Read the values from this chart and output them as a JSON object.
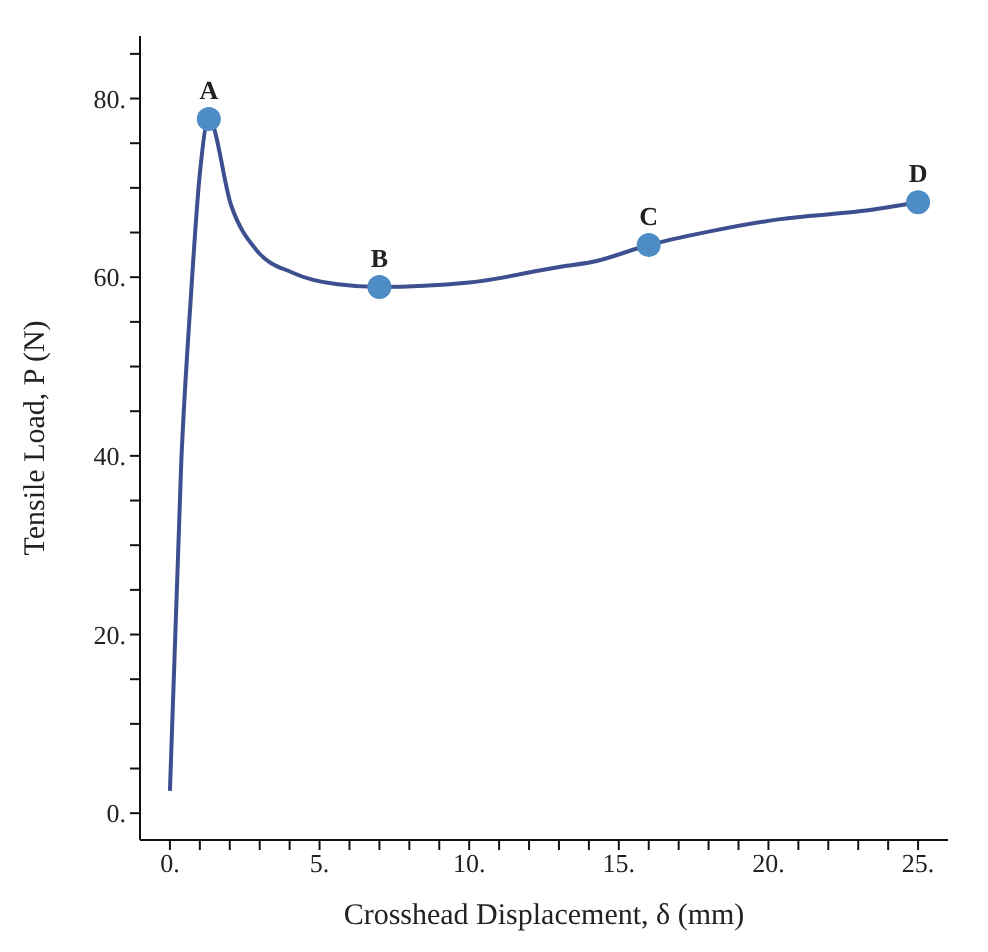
{
  "chart_data": {
    "type": "line",
    "xlabel": "Crosshead Displacement, δ (mm)",
    "ylabel": "Tensile Load, P (N)",
    "xlim": [
      -1,
      26
    ],
    "ylim": [
      -3,
      87
    ],
    "xticks": [
      {
        "value": 0,
        "label": "0."
      },
      {
        "value": 1,
        "label": null
      },
      {
        "value": 2,
        "label": null
      },
      {
        "value": 3,
        "label": null
      },
      {
        "value": 4,
        "label": null
      },
      {
        "value": 5,
        "label": "5."
      },
      {
        "value": 6,
        "label": null
      },
      {
        "value": 7,
        "label": null
      },
      {
        "value": 8,
        "label": null
      },
      {
        "value": 9,
        "label": null
      },
      {
        "value": 10,
        "label": "10."
      },
      {
        "value": 11,
        "label": null
      },
      {
        "value": 12,
        "label": null
      },
      {
        "value": 13,
        "label": null
      },
      {
        "value": 14,
        "label": null
      },
      {
        "value": 15,
        "label": "15."
      },
      {
        "value": 16,
        "label": null
      },
      {
        "value": 17,
        "label": null
      },
      {
        "value": 18,
        "label": null
      },
      {
        "value": 19,
        "label": null
      },
      {
        "value": 20,
        "label": "20."
      },
      {
        "value": 21,
        "label": null
      },
      {
        "value": 22,
        "label": null
      },
      {
        "value": 23,
        "label": null
      },
      {
        "value": 24,
        "label": null
      },
      {
        "value": 25,
        "label": "25."
      }
    ],
    "yticks": [
      {
        "value": 0,
        "label": "0."
      },
      {
        "value": 5,
        "label": null
      },
      {
        "value": 10,
        "label": null
      },
      {
        "value": 15,
        "label": null
      },
      {
        "value": 20,
        "label": "20."
      },
      {
        "value": 25,
        "label": null
      },
      {
        "value": 30,
        "label": null
      },
      {
        "value": 35,
        "label": null
      },
      {
        "value": 40,
        "label": "40."
      },
      {
        "value": 45,
        "label": null
      },
      {
        "value": 50,
        "label": null
      },
      {
        "value": 55,
        "label": null
      },
      {
        "value": 60,
        "label": "60."
      },
      {
        "value": 65,
        "label": null
      },
      {
        "value": 70,
        "label": null
      },
      {
        "value": 75,
        "label": null
      },
      {
        "value": 80,
        "label": "80."
      },
      {
        "value": 85,
        "label": null
      }
    ],
    "grid": false,
    "legend": false,
    "series": [
      {
        "type": "line",
        "color": "#3d4f8e",
        "marker": "none",
        "line_style": "solid",
        "x": [
          0,
          0.38,
          0.69,
          1.0,
          1.3,
          2.05,
          2.9,
          4.1,
          5.6,
          7.0,
          10.0,
          13.1,
          14.1,
          16.0,
          18.3,
          20.4,
          23.1,
          25.0
        ],
        "values": [
          2.5,
          39.4,
          57.3,
          71.6,
          77.7,
          68,
          63,
          60.5,
          59.2,
          58.9,
          59.4,
          61.2,
          61.7,
          63.6,
          65.3,
          66.5,
          67.4,
          68.4
        ]
      },
      {
        "type": "scatter",
        "color": "#4d8cc4",
        "marker": "circle",
        "x": [
          1.3,
          7.0,
          16.0,
          25.0
        ],
        "values": [
          77.7,
          58.9,
          63.6,
          68.4
        ]
      }
    ],
    "annotations": [
      {
        "text": "A",
        "x": 1.3,
        "y": 77.7
      },
      {
        "text": "B",
        "x": 7.0,
        "y": 58.9
      },
      {
        "text": "C",
        "x": 16.0,
        "y": 63.6
      },
      {
        "text": "D",
        "x": 25.0,
        "y": 68.4
      }
    ]
  }
}
